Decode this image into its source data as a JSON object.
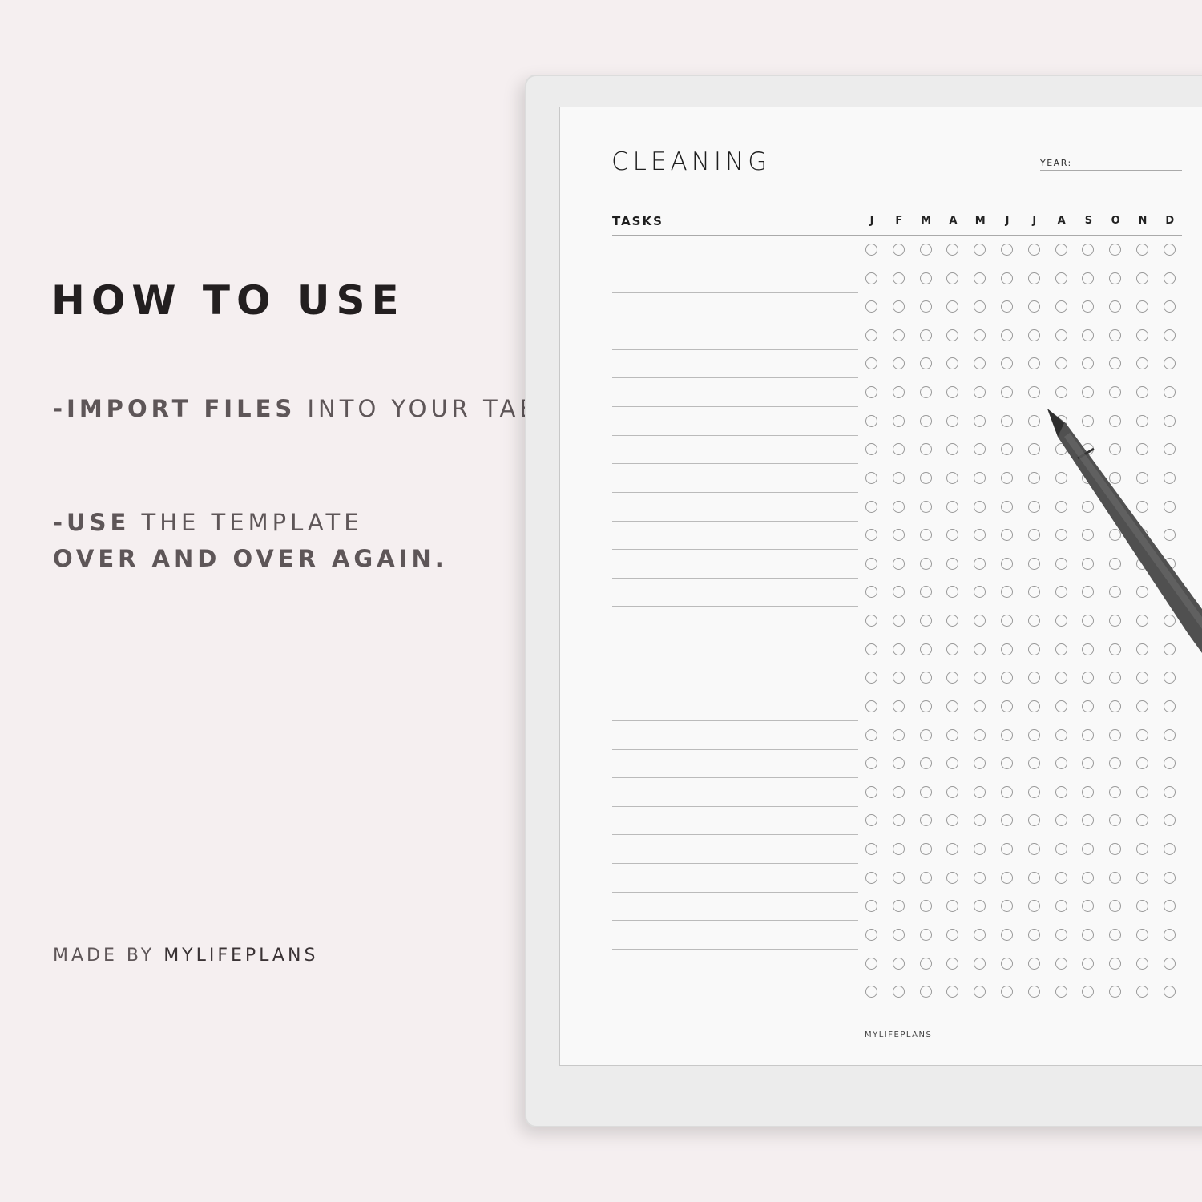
{
  "left_panel": {
    "heading": "HOW TO USE",
    "step1": {
      "bold": "-IMPORT FILES",
      "rest": " INTO YOUR TABLET"
    },
    "step2": {
      "bold": "-USE",
      "rest": " THE TEMPLATE",
      "bold2": "OVER AND OVER AGAIN."
    },
    "made_by": {
      "prefix": "MADE BY ",
      "brand": "MYLIFEPLANS"
    }
  },
  "template": {
    "title": "CLEANING",
    "year_label": "YEAR:",
    "tasks_header": "TASKS",
    "months": [
      "J",
      "F",
      "M",
      "A",
      "M",
      "J",
      "J",
      "A",
      "S",
      "O",
      "N",
      "D"
    ],
    "row_count": 27,
    "footer_brand": "MYLIFEPLANS"
  },
  "colors": {
    "background": "#f5eff0",
    "heading": "#231f20",
    "body_text": "#5e5658",
    "pen": "#4a4a4a"
  }
}
